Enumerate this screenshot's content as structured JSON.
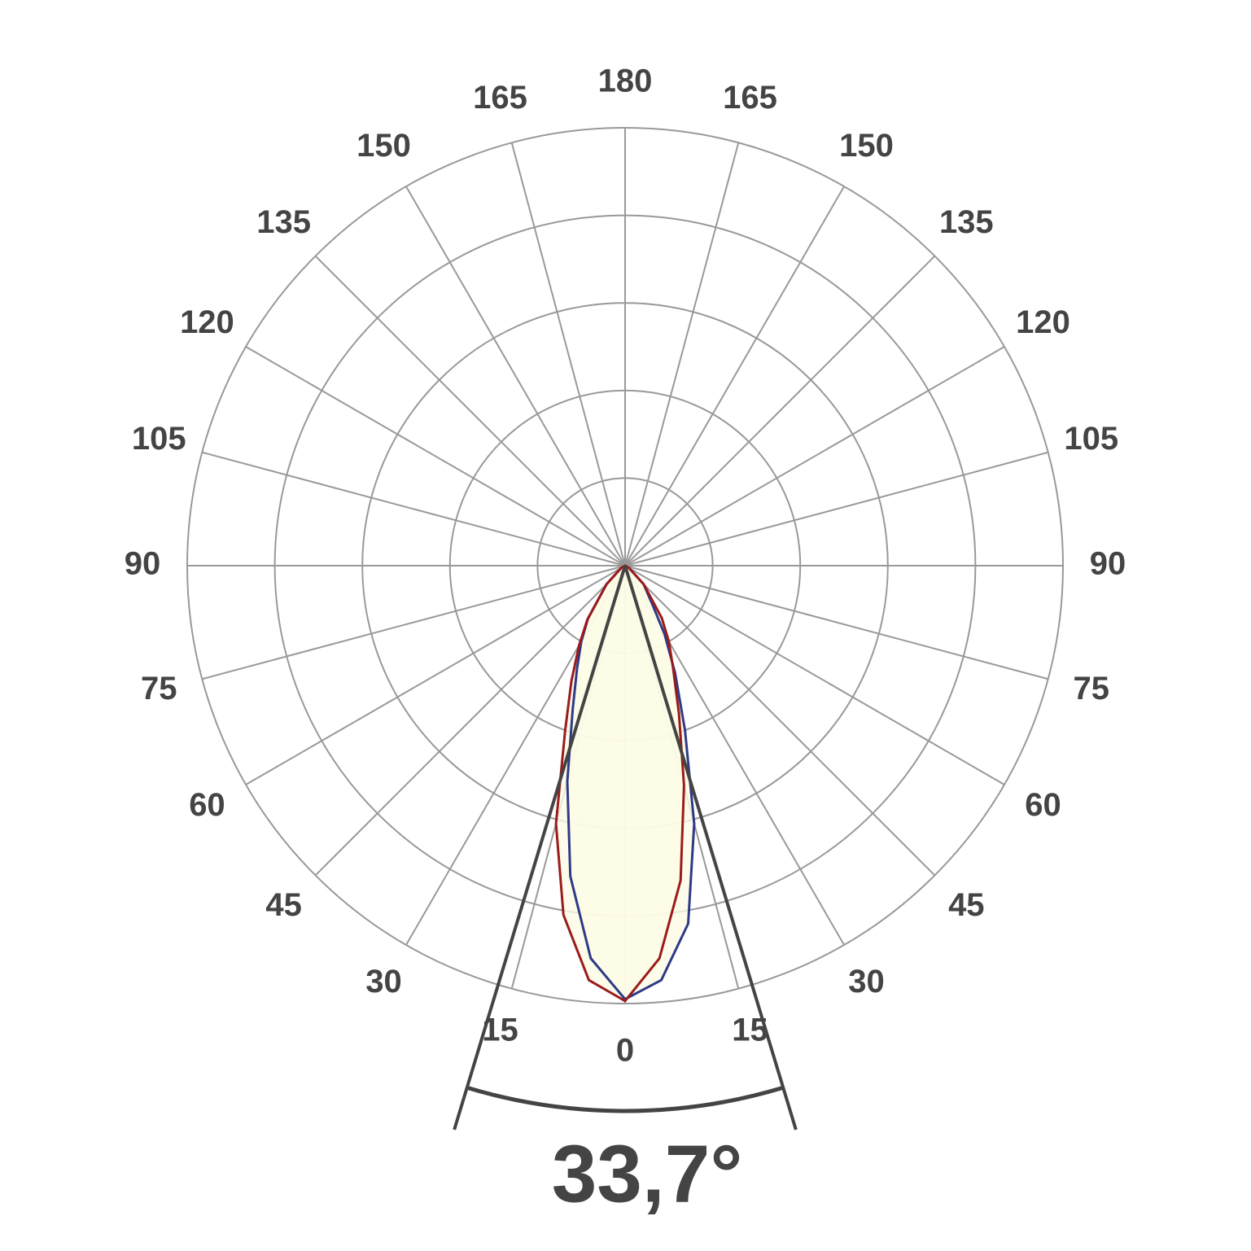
{
  "chart_data": {
    "type": "polar",
    "angles": [
      -90,
      -60,
      -45,
      -35,
      -30,
      -25,
      -20,
      -15,
      -10,
      -5,
      0,
      5,
      10,
      15,
      20,
      25,
      30,
      35,
      45,
      60,
      90
    ],
    "series": [
      {
        "color": "#2e3a87",
        "values": [
          0,
          0.05,
          0.3,
          0.74,
          1.0,
          1.3,
          1.75,
          2.55,
          3.6,
          4.5,
          4.95,
          4.75,
          4.15,
          3.05,
          2.0,
          1.35,
          0.9,
          0.55,
          0.3,
          0.05,
          0
        ]
      },
      {
        "color": "#9b1b1b",
        "values": [
          0,
          0.05,
          0.3,
          0.75,
          1.05,
          1.45,
          2.0,
          3.05,
          4.05,
          4.75,
          4.97,
          4.5,
          3.65,
          2.6,
          1.8,
          1.3,
          1.0,
          0.73,
          0.3,
          0.05,
          0
        ]
      }
    ],
    "fill": "#fdfbe6",
    "rlim": [
      0,
      5
    ],
    "rticks": [
      1,
      2,
      3,
      4,
      5
    ],
    "angle_ticks": [
      0,
      15,
      30,
      45,
      60,
      75,
      90,
      105,
      120,
      135,
      150,
      165,
      180
    ],
    "beam_angle": {
      "value": 33.7,
      "label": "33,7°"
    }
  }
}
